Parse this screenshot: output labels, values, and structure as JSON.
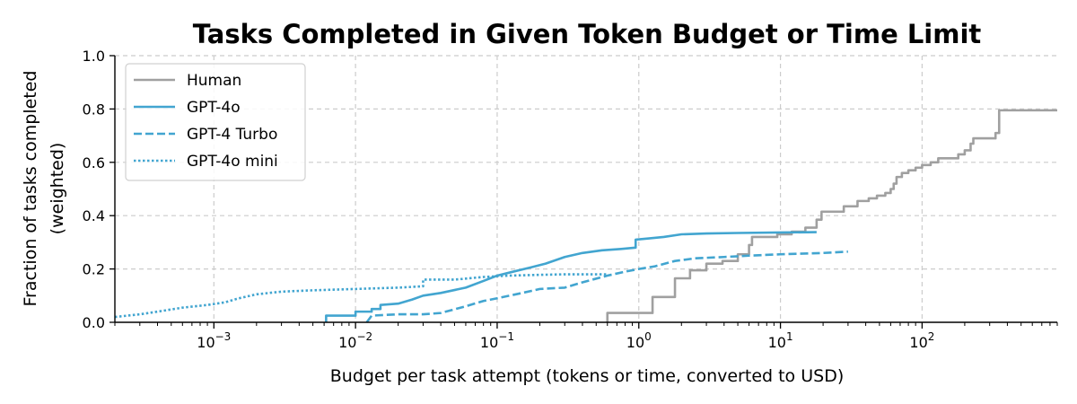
{
  "chart_data": {
    "type": "line",
    "title": "Tasks Completed in Given Token Budget or Time Limit",
    "xlabel": "Budget per task attempt (tokens or time, converted to USD)",
    "ylabel_line1": "Fraction of tasks completed",
    "ylabel_line2": "(weighted)",
    "x_scale": "log",
    "xlim": [
      0.0002,
      900
    ],
    "ylim": [
      0,
      1.0
    ],
    "x_ticks": [
      {
        "value": 0.001,
        "base": "10",
        "exp": "−3"
      },
      {
        "value": 0.01,
        "base": "10",
        "exp": "−2"
      },
      {
        "value": 0.1,
        "base": "10",
        "exp": "−1"
      },
      {
        "value": 1,
        "base": "10",
        "exp": "0"
      },
      {
        "value": 10,
        "base": "10",
        "exp": "1"
      },
      {
        "value": 100,
        "base": "10",
        "exp": "2"
      }
    ],
    "y_ticks": [
      {
        "value": 0.0,
        "label": "0.0"
      },
      {
        "value": 0.2,
        "label": "0.2"
      },
      {
        "value": 0.4,
        "label": "0.4"
      },
      {
        "value": 0.6,
        "label": "0.6"
      },
      {
        "value": 0.8,
        "label": "0.8"
      },
      {
        "value": 1.0,
        "label": "1.0"
      }
    ],
    "grid": true,
    "legend_position": "top-left",
    "series": [
      {
        "name": "Human",
        "color": "#a0a0a0",
        "style": "solid",
        "points": [
          [
            0.6,
            0.0
          ],
          [
            0.6,
            0.035
          ],
          [
            1.25,
            0.035
          ],
          [
            1.25,
            0.095
          ],
          [
            1.8,
            0.095
          ],
          [
            1.8,
            0.165
          ],
          [
            2.3,
            0.165
          ],
          [
            2.3,
            0.195
          ],
          [
            3.0,
            0.195
          ],
          [
            3.0,
            0.22
          ],
          [
            3.9,
            0.22
          ],
          [
            3.9,
            0.23
          ],
          [
            5.0,
            0.23
          ],
          [
            5.0,
            0.255
          ],
          [
            6.0,
            0.255
          ],
          [
            6.0,
            0.29
          ],
          [
            6.3,
            0.29
          ],
          [
            6.3,
            0.32
          ],
          [
            9.5,
            0.32
          ],
          [
            9.5,
            0.33
          ],
          [
            12,
            0.33
          ],
          [
            12,
            0.34
          ],
          [
            15,
            0.34
          ],
          [
            15,
            0.355
          ],
          [
            18,
            0.355
          ],
          [
            18,
            0.385
          ],
          [
            19.5,
            0.385
          ],
          [
            19.5,
            0.415
          ],
          [
            28,
            0.415
          ],
          [
            28,
            0.435
          ],
          [
            35,
            0.435
          ],
          [
            35,
            0.455
          ],
          [
            42,
            0.455
          ],
          [
            42,
            0.465
          ],
          [
            48,
            0.465
          ],
          [
            48,
            0.475
          ],
          [
            55,
            0.475
          ],
          [
            55,
            0.485
          ],
          [
            60,
            0.485
          ],
          [
            60,
            0.5
          ],
          [
            63,
            0.5
          ],
          [
            63,
            0.52
          ],
          [
            66,
            0.52
          ],
          [
            66,
            0.545
          ],
          [
            72,
            0.545
          ],
          [
            72,
            0.56
          ],
          [
            80,
            0.56
          ],
          [
            80,
            0.57
          ],
          [
            90,
            0.57
          ],
          [
            90,
            0.58
          ],
          [
            100,
            0.58
          ],
          [
            100,
            0.59
          ],
          [
            115,
            0.59
          ],
          [
            115,
            0.6
          ],
          [
            130,
            0.6
          ],
          [
            130,
            0.615
          ],
          [
            180,
            0.615
          ],
          [
            180,
            0.63
          ],
          [
            200,
            0.63
          ],
          [
            200,
            0.645
          ],
          [
            220,
            0.645
          ],
          [
            220,
            0.67
          ],
          [
            230,
            0.67
          ],
          [
            230,
            0.69
          ],
          [
            330,
            0.69
          ],
          [
            330,
            0.71
          ],
          [
            350,
            0.71
          ],
          [
            350,
            0.795
          ],
          [
            900,
            0.795
          ]
        ]
      },
      {
        "name": "GPT-4o",
        "color": "#42a5d0",
        "style": "solid",
        "points": [
          [
            0.0062,
            0.0
          ],
          [
            0.0062,
            0.025
          ],
          [
            0.01,
            0.025
          ],
          [
            0.01,
            0.04
          ],
          [
            0.013,
            0.04
          ],
          [
            0.013,
            0.05
          ],
          [
            0.015,
            0.05
          ],
          [
            0.015,
            0.065
          ],
          [
            0.02,
            0.07
          ],
          [
            0.025,
            0.085
          ],
          [
            0.03,
            0.1
          ],
          [
            0.04,
            0.11
          ],
          [
            0.06,
            0.13
          ],
          [
            0.08,
            0.155
          ],
          [
            0.1,
            0.175
          ],
          [
            0.13,
            0.19
          ],
          [
            0.17,
            0.205
          ],
          [
            0.22,
            0.22
          ],
          [
            0.3,
            0.245
          ],
          [
            0.4,
            0.26
          ],
          [
            0.55,
            0.27
          ],
          [
            0.75,
            0.275
          ],
          [
            0.95,
            0.28
          ],
          [
            0.95,
            0.31
          ],
          [
            1.2,
            0.315
          ],
          [
            1.5,
            0.32
          ],
          [
            2,
            0.33
          ],
          [
            3,
            0.333
          ],
          [
            5,
            0.335
          ],
          [
            10,
            0.337
          ],
          [
            18,
            0.338
          ]
        ]
      },
      {
        "name": "GPT-4 Turbo",
        "color": "#42a5d0",
        "style": "dashed",
        "points": [
          [
            0.012,
            0.0
          ],
          [
            0.013,
            0.025
          ],
          [
            0.02,
            0.03
          ],
          [
            0.03,
            0.03
          ],
          [
            0.04,
            0.035
          ],
          [
            0.06,
            0.06
          ],
          [
            0.08,
            0.08
          ],
          [
            0.1,
            0.09
          ],
          [
            0.15,
            0.11
          ],
          [
            0.2,
            0.125
          ],
          [
            0.3,
            0.13
          ],
          [
            0.4,
            0.15
          ],
          [
            0.6,
            0.175
          ],
          [
            0.8,
            0.19
          ],
          [
            1.0,
            0.2
          ],
          [
            1.3,
            0.21
          ],
          [
            1.8,
            0.23
          ],
          [
            2.5,
            0.24
          ],
          [
            4,
            0.245
          ],
          [
            6,
            0.25
          ],
          [
            10,
            0.255
          ],
          [
            20,
            0.26
          ],
          [
            30,
            0.265
          ]
        ]
      },
      {
        "name": "GPT-4o mini",
        "color": "#42a5d0",
        "style": "dotted",
        "points": [
          [
            0.0002,
            0.02
          ],
          [
            0.0003,
            0.03
          ],
          [
            0.0004,
            0.04
          ],
          [
            0.0006,
            0.055
          ],
          [
            0.0009,
            0.065
          ],
          [
            0.0012,
            0.075
          ],
          [
            0.0015,
            0.09
          ],
          [
            0.002,
            0.105
          ],
          [
            0.003,
            0.115
          ],
          [
            0.005,
            0.12
          ],
          [
            0.01,
            0.125
          ],
          [
            0.02,
            0.13
          ],
          [
            0.03,
            0.135
          ],
          [
            0.03,
            0.16
          ],
          [
            0.05,
            0.16
          ],
          [
            0.08,
            0.17
          ],
          [
            0.12,
            0.175
          ],
          [
            0.2,
            0.178
          ],
          [
            0.3,
            0.18
          ],
          [
            0.6,
            0.18
          ]
        ]
      }
    ]
  }
}
